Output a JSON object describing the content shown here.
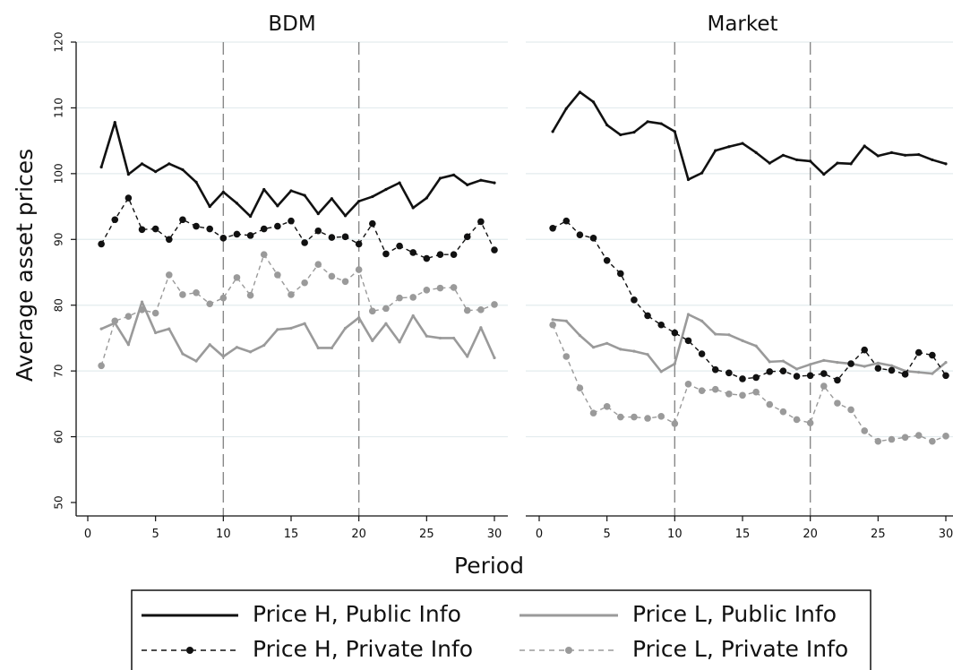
{
  "chart_data": {
    "type": "line",
    "ylabel": "Average asset prices",
    "xlabel": "Period",
    "ylim": [
      50,
      120
    ],
    "yticks": [
      50,
      60,
      70,
      80,
      90,
      100,
      110,
      120
    ],
    "xlim": [
      0,
      30
    ],
    "xticks": [
      0,
      5,
      10,
      15,
      20,
      25,
      30
    ],
    "reference_lines_x": [
      10,
      20
    ],
    "grid": "horizontal",
    "legend_position": "bottom",
    "colors": {
      "black": "#111111",
      "gray": "#9a9a9a",
      "grid": "#e3ecee",
      "refline": "#888888"
    },
    "x": [
      1,
      2,
      3,
      4,
      5,
      6,
      7,
      8,
      9,
      10,
      11,
      12,
      13,
      14,
      15,
      16,
      17,
      18,
      19,
      20,
      21,
      22,
      23,
      24,
      25,
      26,
      27,
      28,
      29,
      30
    ],
    "legend": [
      {
        "name": "Price H, Public Info",
        "key": "h_pub",
        "color": "black",
        "style": "solid"
      },
      {
        "name": "Price L, Public Info",
        "key": "l_pub",
        "color": "gray",
        "style": "solid"
      },
      {
        "name": "Price H, Private Info",
        "key": "h_priv",
        "color": "black",
        "style": "dashed-marker"
      },
      {
        "name": "Price L, Private Info",
        "key": "l_priv",
        "color": "gray",
        "style": "dashed-marker"
      }
    ],
    "panels": [
      {
        "title": "BDM",
        "series": {
          "h_pub": [
            101.0,
            107.8,
            99.9,
            101.5,
            100.3,
            101.5,
            100.6,
            98.7,
            95.0,
            97.2,
            95.5,
            93.5,
            97.6,
            95.1,
            97.4,
            96.7,
            93.9,
            96.2,
            93.6,
            95.8,
            96.5,
            97.6,
            98.6,
            94.8,
            96.3,
            99.3,
            99.8,
            98.3,
            99.0,
            98.6
          ],
          "l_pub": [
            76.4,
            77.3,
            74.0,
            80.5,
            75.8,
            76.4,
            72.6,
            71.5,
            74.0,
            72.2,
            73.6,
            72.9,
            73.9,
            76.3,
            76.5,
            77.2,
            73.5,
            73.5,
            76.5,
            78.1,
            74.6,
            77.2,
            74.4,
            78.4,
            75.3,
            75.0,
            75.0,
            72.2,
            76.6,
            72.0
          ],
          "h_priv": [
            89.3,
            93.0,
            96.3,
            91.5,
            91.6,
            90.0,
            93.0,
            92.0,
            91.6,
            90.2,
            90.8,
            90.6,
            91.6,
            92.0,
            92.8,
            89.5,
            91.3,
            90.3,
            90.4,
            89.3,
            92.4,
            87.8,
            89.0,
            88.0,
            87.1,
            87.7,
            87.7,
            90.4,
            92.7,
            88.4
          ],
          "l_priv": [
            70.8,
            77.6,
            78.3,
            79.3,
            78.8,
            84.6,
            81.6,
            81.9,
            80.2,
            81.1,
            84.2,
            81.5,
            87.7,
            84.6,
            81.6,
            83.4,
            86.2,
            84.4,
            83.6,
            85.4,
            79.1,
            79.5,
            81.1,
            81.2,
            82.3,
            82.6,
            82.7,
            79.2,
            79.3,
            80.1
          ]
        }
      },
      {
        "title": "Market",
        "series": {
          "h_pub": [
            106.4,
            109.9,
            112.4,
            110.9,
            107.4,
            105.9,
            106.3,
            107.9,
            107.6,
            106.4,
            99.1,
            100.1,
            103.5,
            104.1,
            104.6,
            103.2,
            101.6,
            102.8,
            102.1,
            101.9,
            99.9,
            101.6,
            101.5,
            104.2,
            102.7,
            103.2,
            102.8,
            102.9,
            102.1,
            101.5
          ],
          "l_pub": [
            77.8,
            77.6,
            75.4,
            73.6,
            74.2,
            73.3,
            73.0,
            72.5,
            69.9,
            71.1,
            78.6,
            77.6,
            75.6,
            75.5,
            74.6,
            73.8,
            71.4,
            71.5,
            70.3,
            71.0,
            71.6,
            71.3,
            71.1,
            70.7,
            71.2,
            70.8,
            70.0,
            69.8,
            69.6,
            71.3
          ],
          "h_priv": [
            91.7,
            92.8,
            90.7,
            90.2,
            86.8,
            84.8,
            80.8,
            78.4,
            77.0,
            75.8,
            74.6,
            72.6,
            70.2,
            69.7,
            68.8,
            69.0,
            69.9,
            70.0,
            69.2,
            69.3,
            69.6,
            68.6,
            71.1,
            73.2,
            70.4,
            70.1,
            69.5,
            72.8,
            72.4,
            69.3
          ],
          "l_priv": [
            77.0,
            72.2,
            67.4,
            63.6,
            64.6,
            63.0,
            63.0,
            62.8,
            63.1,
            62.0,
            68.0,
            67.0,
            67.2,
            66.5,
            66.3,
            66.8,
            64.9,
            63.8,
            62.6,
            62.1,
            67.7,
            65.1,
            64.1,
            60.9,
            59.3,
            59.6,
            59.9,
            60.2,
            59.3,
            60.1
          ]
        }
      }
    ]
  }
}
